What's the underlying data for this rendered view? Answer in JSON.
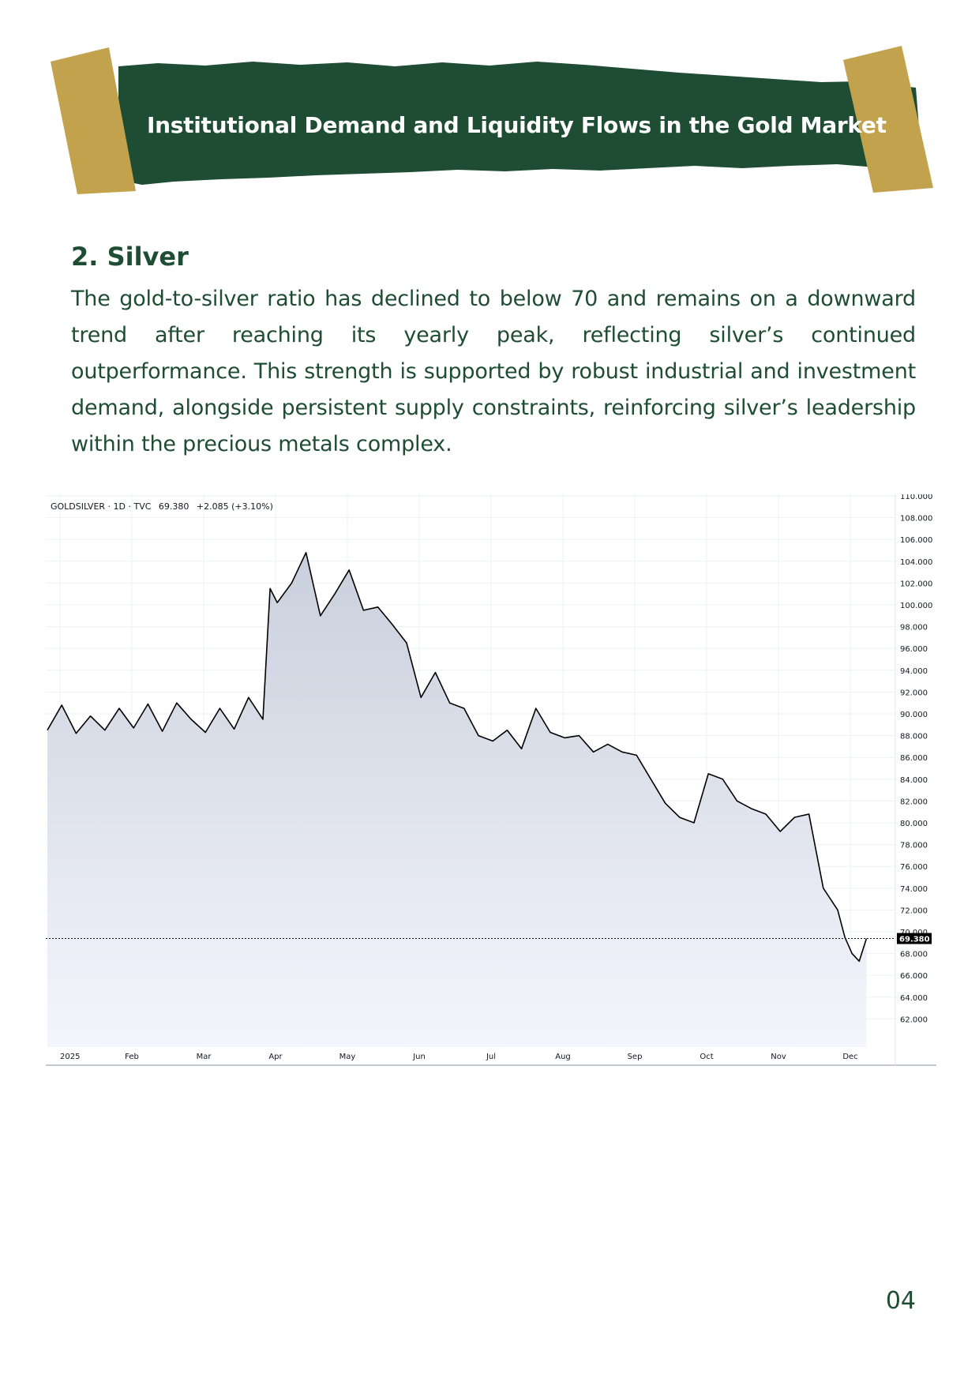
{
  "banner": {
    "title": "Institutional Demand and Liquidity Flows in the Gold Market"
  },
  "section": {
    "heading": "2. Silver",
    "body": "The gold-to-silver ratio has declined to below 70 and remains on a downward trend after reaching its yearly peak, reflecting silver’s continued outperformance. This strength is supported by robust industrial and investment demand, alongside persistent supply constraints, reinforcing silver’s leadership within the precious metals complex."
  },
  "chart_header": {
    "symbol": "GOLDSILVER · 1D · TVC",
    "last": "69.380",
    "change": "+2.085 (+3.10%)"
  },
  "colors": {
    "brand_green": "#1f4d34",
    "tape_gold": "#c2a24c",
    "line": "#000000",
    "fill_top": "#c9cfdc",
    "fill_bottom": "#f4f6fd"
  },
  "chart_data": {
    "type": "area",
    "title": "",
    "xlabel": "",
    "ylabel": "",
    "ylim": [
      60,
      110
    ],
    "yticks": [
      "62.000",
      "64.000",
      "66.000",
      "68.000",
      "70.000",
      "72.000",
      "74.000",
      "76.000",
      "78.000",
      "80.000",
      "82.000",
      "84.000",
      "86.000",
      "88.000",
      "90.000",
      "92.000",
      "94.000",
      "96.000",
      "98.000",
      "100.000",
      "102.000",
      "104.000",
      "106.000",
      "108.000",
      "110.000"
    ],
    "xticks": [
      "2025",
      "Feb",
      "Mar",
      "Apr",
      "May",
      "Jun",
      "Jul",
      "Aug",
      "Sep",
      "Oct",
      "Nov",
      "Dec"
    ],
    "last_value_label": "69.380",
    "x_months": [
      0,
      0.2,
      0.4,
      0.6,
      0.8,
      1.0,
      1.2,
      1.4,
      1.6,
      1.8,
      2.0,
      2.2,
      2.4,
      2.6,
      2.8,
      3.0,
      3.1,
      3.2,
      3.4,
      3.6,
      3.8,
      4.0,
      4.2,
      4.4,
      4.6,
      4.8,
      5.0,
      5.2,
      5.4,
      5.6,
      5.8,
      6.0,
      6.2,
      6.4,
      6.6,
      6.8,
      7.0,
      7.2,
      7.4,
      7.6,
      7.8,
      8.0,
      8.2,
      8.4,
      8.6,
      8.8,
      9.0,
      9.2,
      9.4,
      9.6,
      9.8,
      10.0,
      10.2,
      10.4,
      10.6,
      10.8,
      11.0,
      11.1,
      11.2,
      11.3,
      11.4
    ],
    "values": [
      88.5,
      90.8,
      88.2,
      89.8,
      88.5,
      90.5,
      88.7,
      90.9,
      88.4,
      91.0,
      89.5,
      88.3,
      90.5,
      88.6,
      91.5,
      89.5,
      101.5,
      100.2,
      102.0,
      104.8,
      99.0,
      101.0,
      103.2,
      99.5,
      99.8,
      98.2,
      96.5,
      91.5,
      93.8,
      91.0,
      90.5,
      88.0,
      87.5,
      88.5,
      86.8,
      90.5,
      88.3,
      87.8,
      88.0,
      86.5,
      87.2,
      86.5,
      86.2,
      84.0,
      81.8,
      80.5,
      80.0,
      84.5,
      84.0,
      82.0,
      81.3,
      80.8,
      79.2,
      80.5,
      80.8,
      74.0,
      72.0,
      69.5,
      68.0,
      67.3,
      69.38
    ]
  },
  "page_number": "04"
}
